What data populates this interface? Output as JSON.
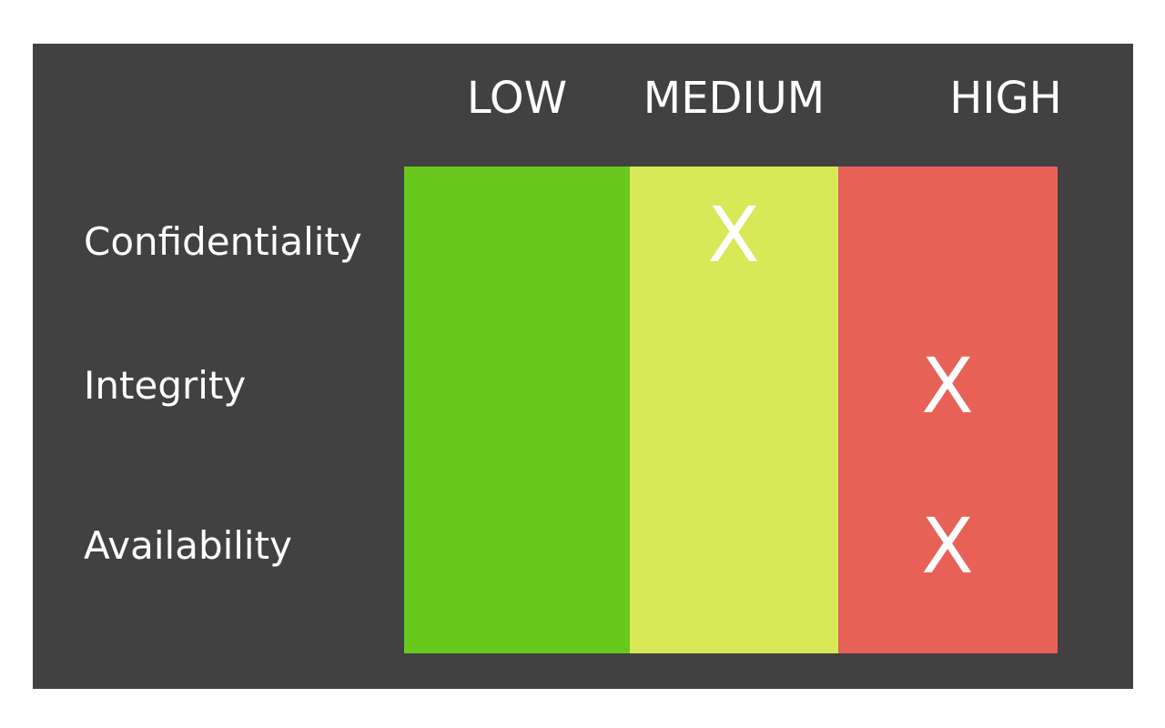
{
  "columns": [
    {
      "id": "low",
      "label": "LOW",
      "color": "#68c91c"
    },
    {
      "id": "medium",
      "label": "MEDIUM",
      "color": "#d8e857"
    },
    {
      "id": "high",
      "label": "HIGH",
      "color": "#e86156"
    }
  ],
  "rows": [
    {
      "label": "Confidentiality",
      "level": "medium"
    },
    {
      "label": "Integrity",
      "level": "high"
    },
    {
      "label": "Availability",
      "level": "high"
    }
  ],
  "mark_symbol": "X",
  "colors": {
    "panel_background": "#414141",
    "text": "#ffffff"
  }
}
